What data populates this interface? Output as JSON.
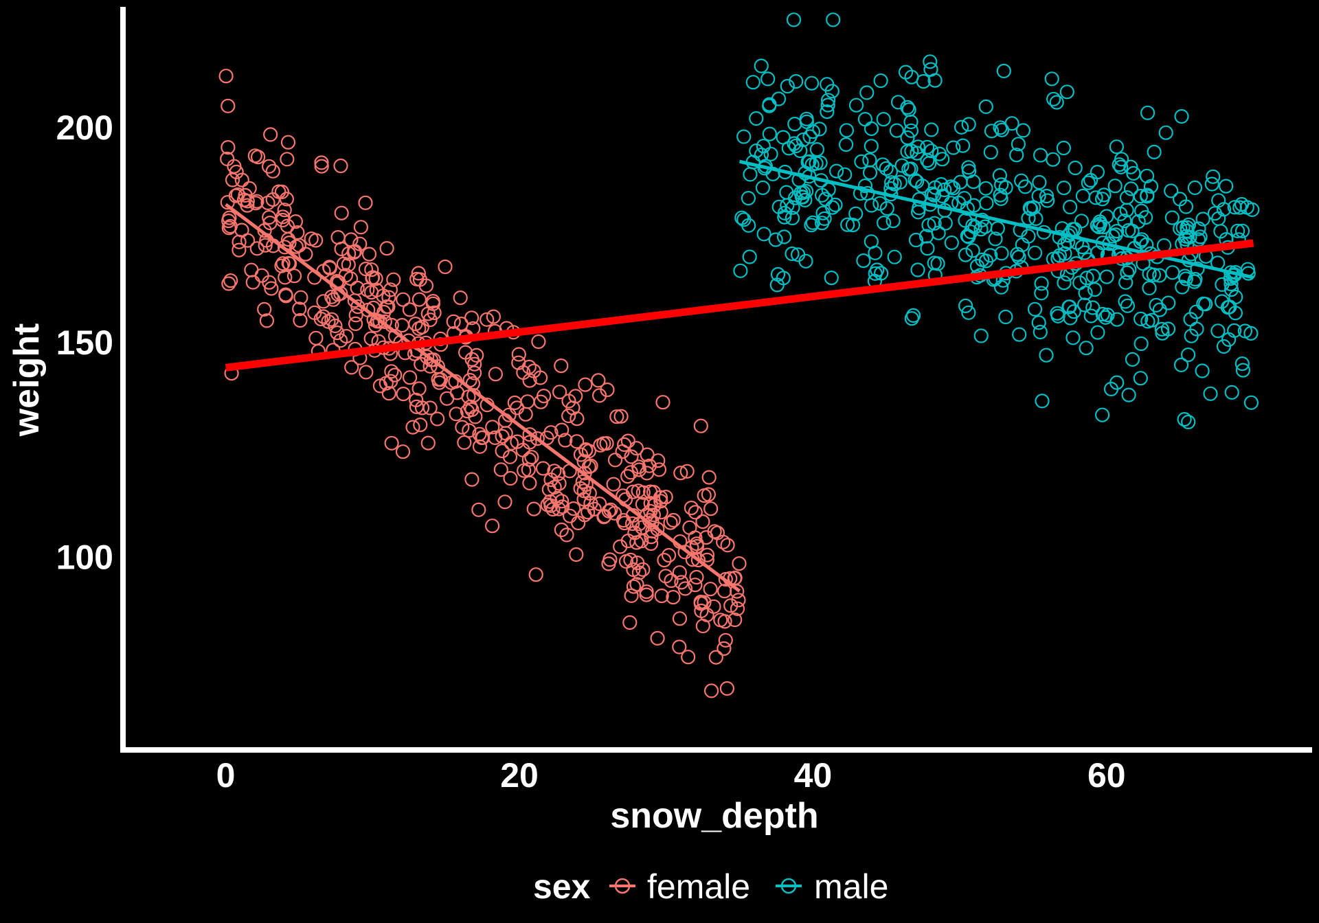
{
  "chart_data": {
    "type": "scatter",
    "xlabel": "snow_depth",
    "ylabel": "weight",
    "xlim": [
      -7,
      74
    ],
    "ylim": [
      55,
      228
    ],
    "x_ticks": [
      {
        "value": 0,
        "label": "0"
      },
      {
        "value": 20,
        "label": "20"
      },
      {
        "value": 40,
        "label": "40"
      },
      {
        "value": 60,
        "label": "60"
      }
    ],
    "y_ticks": [
      {
        "value": 100,
        "label": "100"
      },
      {
        "value": 150,
        "label": "150"
      },
      {
        "value": 200,
        "label": "200"
      }
    ],
    "grid": false,
    "legend": {
      "title": "sex",
      "position": "bottom",
      "entries": [
        {
          "label": "female",
          "color": "#F8766D"
        },
        {
          "label": "male",
          "color": "#00BFC4"
        }
      ]
    },
    "series": [
      {
        "name": "female",
        "color": "#F8766D",
        "marker": "open-circle",
        "points": {
          "x_range": [
            0,
            35
          ],
          "approx_count": 500
        },
        "trend": {
          "x": [
            0,
            35
          ],
          "y": [
            182,
            92
          ]
        }
      },
      {
        "name": "male",
        "color": "#00BFC4",
        "marker": "open-circle",
        "points": {
          "x_range": [
            35,
            70
          ],
          "approx_count": 500
        },
        "trend": {
          "x": [
            35,
            70
          ],
          "y": [
            192,
            165
          ]
        }
      }
    ],
    "overall_trend": {
      "color": "#FF0000",
      "x": [
        0,
        70
      ],
      "y": [
        144,
        173
      ]
    }
  }
}
